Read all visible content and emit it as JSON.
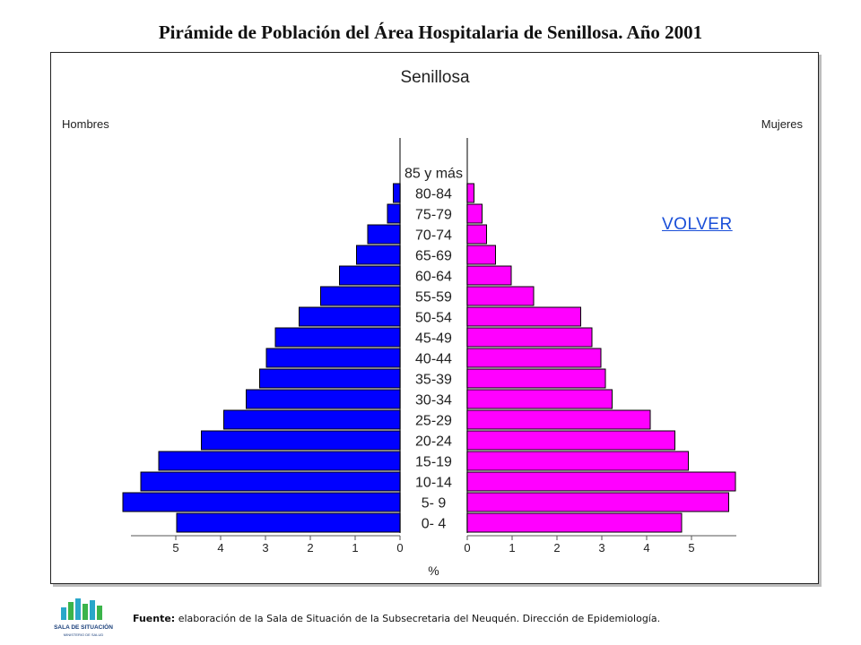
{
  "title": "Pirámide de Población del Área Hospitalaria de Senillosa. Año 2001",
  "volver_label": "VOLVER",
  "footer": {
    "label": "Fuente:",
    "text": " elaboración de la Sala de Situación de la Subsecretaria del Neuquén. Dirección de Epidemiología."
  },
  "logo": {
    "line1": "SALA DE SITUACIÓN",
    "line2": "MINISTERIO DE SALUD"
  },
  "chart_data": {
    "type": "bar",
    "orientation": "horizontal-pyramid",
    "title": "Senillosa",
    "left_label": "Hombres",
    "right_label": "Mujeres",
    "xlabel": "%",
    "categories": [
      "85 y más",
      "80-84",
      "75-79",
      "70-74",
      "65-69",
      "60-64",
      "55-59",
      "50-54",
      "45-49",
      "40-44",
      "35-39",
      "30-34",
      "25-29",
      "20-24",
      "15-19",
      "10-14",
      "5- 9",
      "0- 4"
    ],
    "series": [
      {
        "name": "Hombres",
        "color": "#0000ff",
        "values": [
          0,
          0.15,
          0.28,
          0.72,
          0.97,
          1.35,
          1.77,
          2.25,
          2.78,
          2.98,
          3.13,
          3.43,
          3.93,
          4.43,
          5.38,
          5.78,
          6.18,
          4.98
        ]
      },
      {
        "name": "Mujeres",
        "color": "#ff00ff",
        "values": [
          0,
          0.15,
          0.33,
          0.43,
          0.63,
          0.98,
          1.48,
          2.53,
          2.78,
          2.98,
          3.08,
          3.23,
          4.08,
          4.63,
          4.93,
          5.98,
          5.83,
          4.78
        ]
      }
    ],
    "ticks_left": [
      "5",
      "4",
      "3",
      "2",
      "1",
      "0"
    ],
    "ticks_right": [
      "0",
      "1",
      "2",
      "3",
      "4",
      "5"
    ],
    "xlim": [
      0,
      6
    ]
  }
}
